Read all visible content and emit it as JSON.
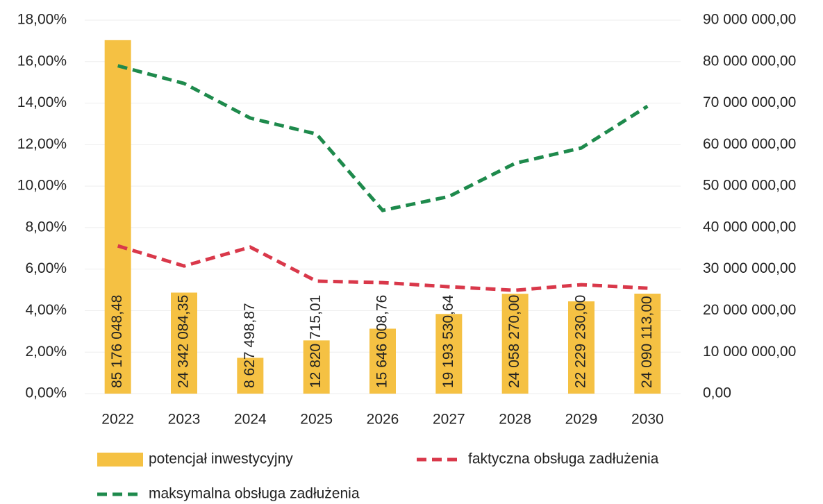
{
  "chart_data": {
    "type": "bar",
    "categories": [
      "2022",
      "2023",
      "2024",
      "2025",
      "2026",
      "2027",
      "2028",
      "2029",
      "2030"
    ],
    "series": [
      {
        "name": "potencjał inwestycyjny",
        "type": "bar",
        "axis": "y2",
        "color": "#f5c143",
        "values": [
          85176048.48,
          24342084.35,
          8627498.87,
          12820715.01,
          15646008.76,
          19193530.64,
          24058270.0,
          22229230.0,
          24090113.0
        ],
        "value_labels": [
          "85 176 048,48",
          "24 342 084,35",
          "8 627 498,87",
          "12 820 715,01",
          "15 646 008,76",
          "19 193 530,64",
          "24 058 270,00",
          "22 229 230,00",
          "24 090 113,00"
        ]
      },
      {
        "name": "faktyczna obsługa zadłużenia",
        "type": "line",
        "line_style": "dashed",
        "color": "#d9384a",
        "values": [
          7.12,
          6.15,
          7.06,
          5.42,
          5.35,
          5.15,
          4.98,
          5.25,
          5.08
        ]
      },
      {
        "name": "maksymalna obsługa zadłużenia",
        "type": "line",
        "line_style": "dashed",
        "color": "#1e8a4c",
        "values": [
          15.8,
          14.95,
          13.28,
          12.51,
          8.83,
          9.5,
          11.1,
          11.84,
          13.85
        ]
      }
    ],
    "ylim": [
      0,
      18
    ],
    "yticks": [
      {
        "value": 0,
        "label": "0,00%"
      },
      {
        "value": 2,
        "label": "2,00%"
      },
      {
        "value": 4,
        "label": "4,00%"
      },
      {
        "value": 6,
        "label": "6,00%"
      },
      {
        "value": 8,
        "label": "8,00%"
      },
      {
        "value": 10,
        "label": "10,00%"
      },
      {
        "value": 12,
        "label": "12,00%"
      },
      {
        "value": 14,
        "label": "14,00%"
      },
      {
        "value": 16,
        "label": "16,00%"
      },
      {
        "value": 18,
        "label": "18,00%"
      }
    ],
    "y2lim": [
      0,
      90000000
    ],
    "y2ticks": [
      {
        "value": 0,
        "label": "0,00"
      },
      {
        "value": 10000000,
        "label": "10 000 000,00"
      },
      {
        "value": 20000000,
        "label": "20 000 000,00"
      },
      {
        "value": 30000000,
        "label": "30 000 000,00"
      },
      {
        "value": 40000000,
        "label": "40 000 000,00"
      },
      {
        "value": 50000000,
        "label": "50 000 000,00"
      },
      {
        "value": 60000000,
        "label": "60 000 000,00"
      },
      {
        "value": 70000000,
        "label": "70 000 000,00"
      },
      {
        "value": 80000000,
        "label": "80 000 000,00"
      },
      {
        "value": 90000000,
        "label": "90 000 000,00"
      }
    ],
    "grid": true
  }
}
